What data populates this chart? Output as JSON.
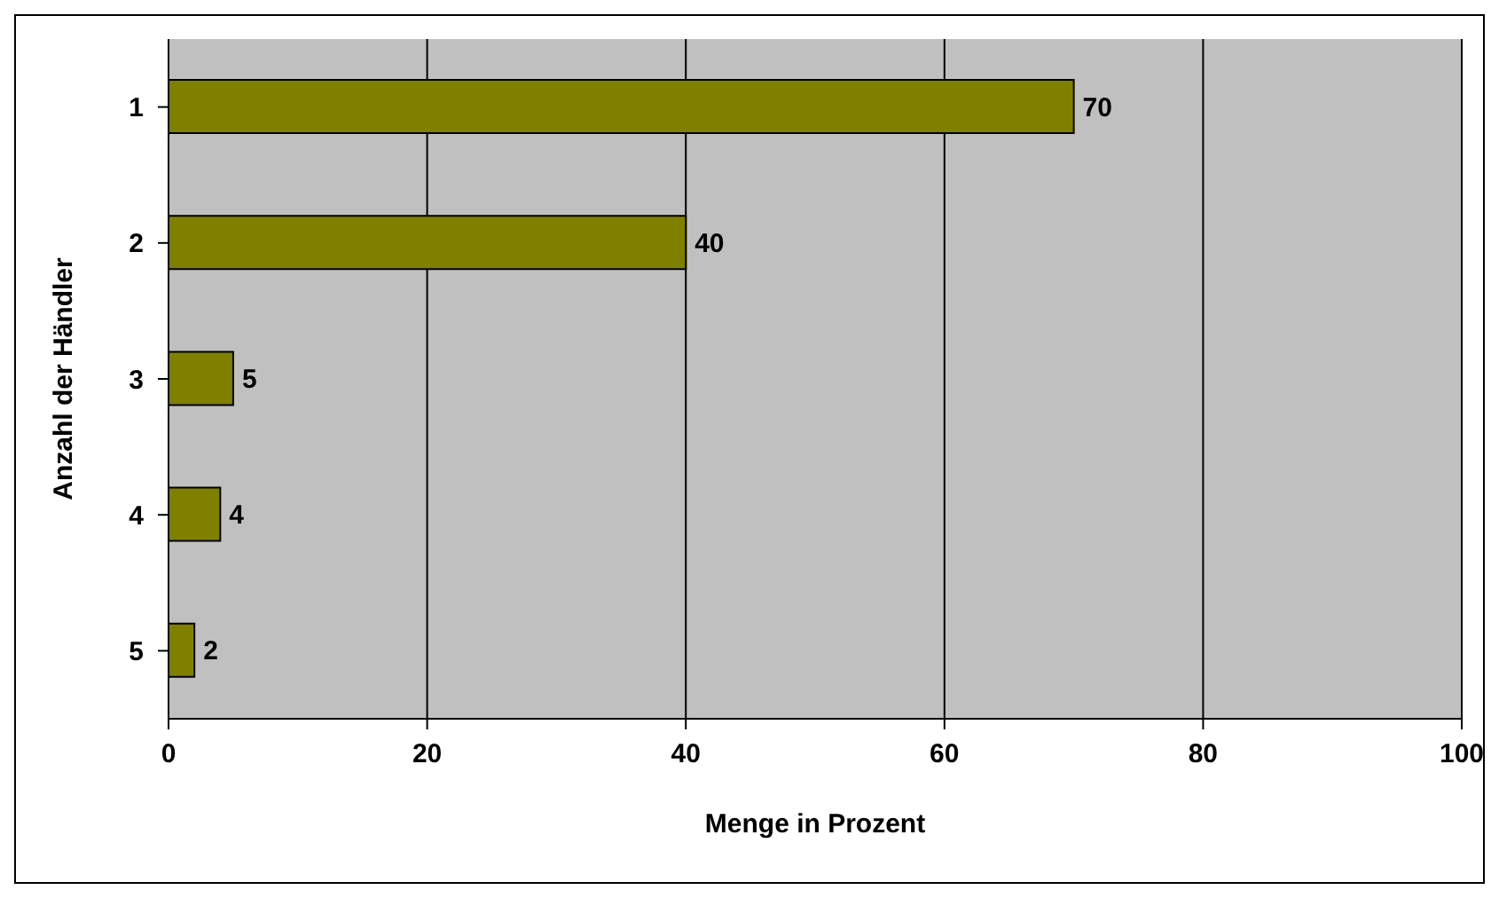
{
  "chart_data": {
    "type": "bar",
    "orientation": "horizontal",
    "xlabel": "Menge in Prozent",
    "ylabel": "Anzahl der Händler",
    "categories": [
      "1",
      "2",
      "3",
      "4",
      "5"
    ],
    "values": [
      70,
      40,
      5,
      4,
      2
    ],
    "color": "#808000",
    "xlim": [
      0,
      100
    ],
    "xticks": [
      0,
      20,
      40,
      60,
      80,
      100
    ],
    "grid": "x",
    "data_labels": true
  }
}
